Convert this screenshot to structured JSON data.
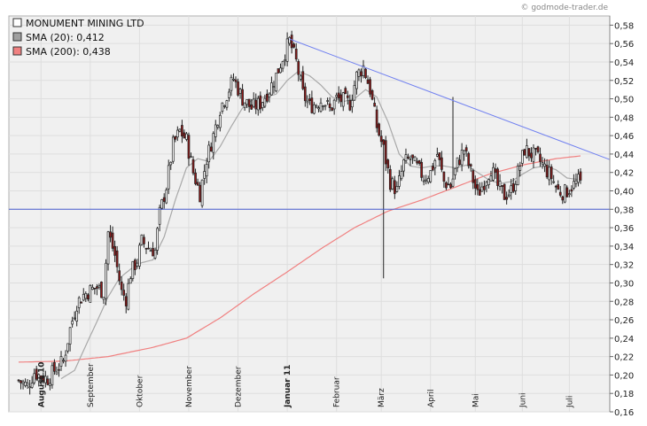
{
  "credit": "© godmode-trader.de",
  "chart_data": {
    "type": "candlestick",
    "ylim": [
      0.16,
      0.59
    ],
    "yticks": [
      0.16,
      0.18,
      0.2,
      0.22,
      0.24,
      0.26,
      0.28,
      0.3,
      0.32,
      0.34,
      0.36,
      0.38,
      0.4,
      0.42,
      0.44,
      0.46,
      0.48,
      0.5,
      0.52,
      0.54,
      0.56,
      0.58
    ],
    "ytick_labels": [
      "0,16",
      "0,18",
      "0,20",
      "0,22",
      "0,24",
      "0,26",
      "0,28",
      "0,30",
      "0,32",
      "0,34",
      "0,36",
      "0,38",
      "0,40",
      "0,42",
      "0,44",
      "0,46",
      "0,48",
      "0,50",
      "0,52",
      "0,54",
      "0,56",
      "0,58"
    ],
    "grid": true,
    "legend_position": "top-left",
    "legend": [
      {
        "label": "MONUMENT MINING LTD",
        "color": "#ffffff"
      },
      {
        "label": "SMA (20): 0,412",
        "color": "#a0a0a0"
      },
      {
        "label": "SMA (200): 0,438",
        "color": "#f08080"
      }
    ],
    "months": [
      {
        "label": "August 10",
        "index": 10,
        "bold": true
      },
      {
        "label": "September",
        "index": 32,
        "bold": false
      },
      {
        "label": "Oktober",
        "index": 54,
        "bold": false
      },
      {
        "label": "November",
        "index": 76,
        "bold": false
      },
      {
        "label": "Dezember",
        "index": 98,
        "bold": false
      },
      {
        "label": "Januar 11",
        "index": 120,
        "bold": true
      },
      {
        "label": "Februar",
        "index": 142,
        "bold": false
      },
      {
        "label": "März",
        "index": 162,
        "bold": false
      },
      {
        "label": "April",
        "index": 184,
        "bold": false
      },
      {
        "label": "Mai",
        "index": 204,
        "bold": false
      },
      {
        "label": "Juni",
        "index": 225,
        "bold": false
      },
      {
        "label": "Juli",
        "index": 246,
        "bold": false
      }
    ],
    "n_bars": 252,
    "close_anchors": [
      [
        0,
        0.194
      ],
      [
        4,
        0.188
      ],
      [
        7,
        0.203
      ],
      [
        10,
        0.198
      ],
      [
        13,
        0.196
      ],
      [
        16,
        0.205
      ],
      [
        20,
        0.215
      ],
      [
        23,
        0.25
      ],
      [
        26,
        0.278
      ],
      [
        29,
        0.287
      ],
      [
        32,
        0.292
      ],
      [
        35,
        0.295
      ],
      [
        38,
        0.29
      ],
      [
        40,
        0.355
      ],
      [
        43,
        0.33
      ],
      [
        46,
        0.29
      ],
      [
        48,
        0.283
      ],
      [
        50,
        0.31
      ],
      [
        53,
        0.325
      ],
      [
        55,
        0.345
      ],
      [
        58,
        0.338
      ],
      [
        61,
        0.335
      ],
      [
        63,
        0.375
      ],
      [
        66,
        0.405
      ],
      [
        69,
        0.45
      ],
      [
        72,
        0.465
      ],
      [
        75,
        0.455
      ],
      [
        78,
        0.42
      ],
      [
        81,
        0.397
      ],
      [
        84,
        0.435
      ],
      [
        87,
        0.46
      ],
      [
        90,
        0.49
      ],
      [
        93,
        0.505
      ],
      [
        96,
        0.522
      ],
      [
        100,
        0.5
      ],
      [
        104,
        0.49
      ],
      [
        108,
        0.495
      ],
      [
        112,
        0.51
      ],
      [
        115,
        0.525
      ],
      [
        118,
        0.545
      ],
      [
        121,
        0.563
      ],
      [
        124,
        0.54
      ],
      [
        127,
        0.505
      ],
      [
        130,
        0.492
      ],
      [
        133,
        0.495
      ],
      [
        136,
        0.5
      ],
      [
        139,
        0.488
      ],
      [
        142,
        0.5
      ],
      [
        145,
        0.498
      ],
      [
        148,
        0.495
      ],
      [
        151,
        0.525
      ],
      [
        154,
        0.535
      ],
      [
        157,
        0.51
      ],
      [
        160,
        0.47
      ],
      [
        163,
        0.445
      ],
      [
        166,
        0.41
      ],
      [
        169,
        0.4
      ],
      [
        172,
        0.43
      ],
      [
        175,
        0.435
      ],
      [
        178,
        0.425
      ],
      [
        181,
        0.415
      ],
      [
        184,
        0.42
      ],
      [
        187,
        0.44
      ],
      [
        190,
        0.41
      ],
      [
        193,
        0.405
      ],
      [
        196,
        0.43
      ],
      [
        199,
        0.445
      ],
      [
        202,
        0.42
      ],
      [
        205,
        0.395
      ],
      [
        208,
        0.41
      ],
      [
        211,
        0.425
      ],
      [
        214,
        0.405
      ],
      [
        217,
        0.395
      ],
      [
        220,
        0.4
      ],
      [
        223,
        0.42
      ],
      [
        226,
        0.445
      ],
      [
        229,
        0.44
      ],
      [
        232,
        0.435
      ],
      [
        235,
        0.425
      ],
      [
        238,
        0.415
      ],
      [
        241,
        0.4
      ],
      [
        244,
        0.398
      ],
      [
        247,
        0.405
      ],
      [
        250,
        0.41
      ],
      [
        251,
        0.408
      ]
    ],
    "sma20_anchors": [
      [
        19,
        0.196
      ],
      [
        25,
        0.205
      ],
      [
        30,
        0.232
      ],
      [
        35,
        0.258
      ],
      [
        40,
        0.285
      ],
      [
        45,
        0.305
      ],
      [
        50,
        0.315
      ],
      [
        55,
        0.322
      ],
      [
        60,
        0.325
      ],
      [
        65,
        0.35
      ],
      [
        70,
        0.39
      ],
      [
        75,
        0.425
      ],
      [
        80,
        0.435
      ],
      [
        85,
        0.432
      ],
      [
        90,
        0.448
      ],
      [
        95,
        0.47
      ],
      [
        100,
        0.49
      ],
      [
        105,
        0.5
      ],
      [
        110,
        0.502
      ],
      [
        115,
        0.505
      ],
      [
        120,
        0.52
      ],
      [
        125,
        0.53
      ],
      [
        130,
        0.525
      ],
      [
        135,
        0.515
      ],
      [
        140,
        0.502
      ],
      [
        145,
        0.497
      ],
      [
        150,
        0.5
      ],
      [
        155,
        0.51
      ],
      [
        160,
        0.502
      ],
      [
        165,
        0.475
      ],
      [
        170,
        0.44
      ],
      [
        175,
        0.427
      ],
      [
        180,
        0.425
      ],
      [
        185,
        0.427
      ],
      [
        190,
        0.427
      ],
      [
        195,
        0.425
      ],
      [
        200,
        0.428
      ],
      [
        205,
        0.42
      ],
      [
        210,
        0.412
      ],
      [
        215,
        0.408
      ],
      [
        220,
        0.41
      ],
      [
        225,
        0.418
      ],
      [
        230,
        0.425
      ],
      [
        235,
        0.427
      ],
      [
        240,
        0.423
      ],
      [
        245,
        0.414
      ],
      [
        251,
        0.412
      ]
    ],
    "sma200_anchors": [
      [
        0,
        0.214
      ],
      [
        20,
        0.215
      ],
      [
        40,
        0.22
      ],
      [
        60,
        0.23
      ],
      [
        75,
        0.24
      ],
      [
        90,
        0.262
      ],
      [
        105,
        0.288
      ],
      [
        120,
        0.312
      ],
      [
        135,
        0.337
      ],
      [
        150,
        0.36
      ],
      [
        165,
        0.378
      ],
      [
        180,
        0.39
      ],
      [
        195,
        0.404
      ],
      [
        210,
        0.418
      ],
      [
        225,
        0.428
      ],
      [
        240,
        0.435
      ],
      [
        251,
        0.438
      ]
    ],
    "support_line": {
      "value": 0.38
    },
    "trend_line": {
      "start": [
        121,
        0.565
      ],
      "end": [
        260,
        0.434
      ]
    }
  }
}
